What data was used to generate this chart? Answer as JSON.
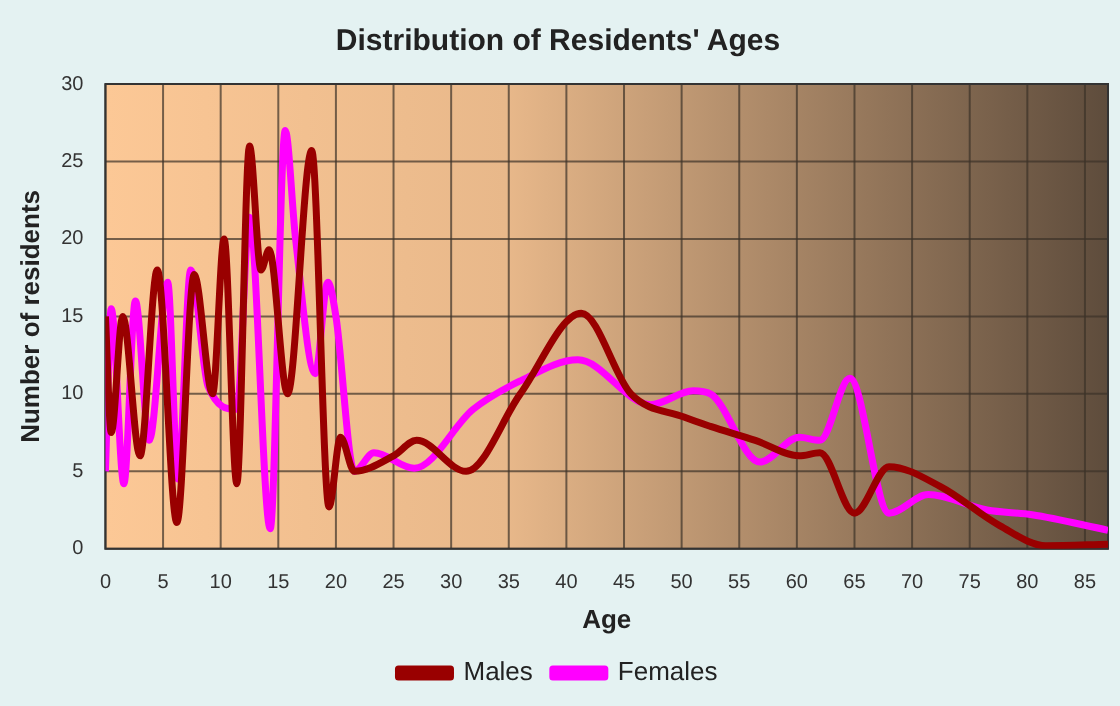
{
  "chart_data": {
    "type": "line",
    "title": "Distribution of Residents' Ages",
    "xlabel": "Age",
    "ylabel": "Number of residents",
    "xlim": [
      0,
      87
    ],
    "xticks": [
      0,
      5,
      10,
      15,
      20,
      25,
      30,
      35,
      40,
      45,
      50,
      55,
      60,
      65,
      70,
      75,
      80,
      85
    ],
    "ylim": [
      0,
      30
    ],
    "yticks": [
      0,
      5,
      10,
      15,
      20,
      25,
      30
    ],
    "grid": true,
    "legend": "bottom",
    "marker": "none",
    "series": [
      {
        "name": "Males",
        "color": "#990000",
        "x": [
          0,
          0.5,
          1.5,
          3,
          4.5,
          6.2,
          7.7,
          9.3,
          10.3,
          11.4,
          12.5,
          13.5,
          14.2,
          15.8,
          17.9,
          19.4,
          20.4,
          21.6,
          25,
          27,
          31.3,
          36,
          41.3,
          45.6,
          50.2,
          52.5,
          56.4,
          60.2,
          62,
          65,
          68,
          72.5,
          77.6,
          81.6,
          87
        ],
        "values": [
          15,
          7.5,
          15,
          6,
          18,
          1.7,
          17.7,
          10,
          20,
          4.2,
          26,
          18,
          19.3,
          10,
          25.7,
          2.7,
          7.2,
          5,
          6,
          7,
          5,
          10,
          15.2,
          10,
          8.5,
          7.9,
          7,
          6,
          6.2,
          2.3,
          5.3,
          4,
          1.5,
          0.2,
          0.3
        ]
      },
      {
        "name": "Females",
        "color": "#ff00ff",
        "x": [
          0,
          0.5,
          1.6,
          2.6,
          3.8,
          5.4,
          6.3,
          7.4,
          8.9,
          11.4,
          12.5,
          14.3,
          15.6,
          16.5,
          18.2,
          19.3,
          20,
          21.6,
          23.3,
          26.8,
          31.9,
          35.9,
          41,
          47.3,
          51,
          52.5,
          56.8,
          60.2,
          62,
          64.6,
          68,
          71.4,
          76.5,
          80.4,
          87
        ],
        "values": [
          5,
          15.5,
          4.2,
          16,
          7,
          17.2,
          4.5,
          18,
          10.5,
          9,
          21.4,
          1.3,
          27,
          20,
          11.3,
          17.2,
          15,
          5,
          6.2,
          5.2,
          9,
          10.8,
          12.2,
          9.3,
          10.2,
          10,
          5.6,
          7.2,
          7,
          11,
          2.3,
          3.5,
          2.5,
          2.2,
          1.2
        ]
      }
    ]
  }
}
